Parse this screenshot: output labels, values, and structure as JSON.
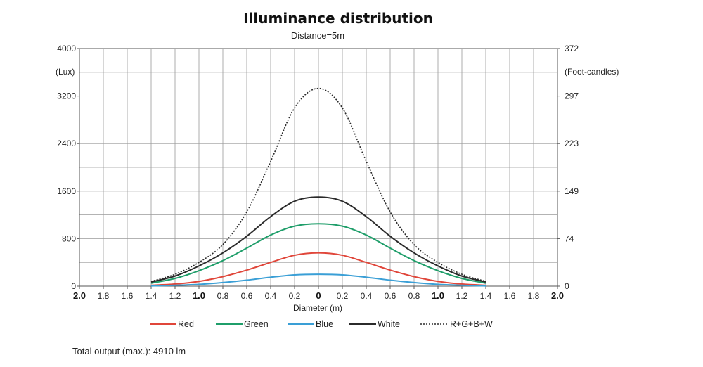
{
  "chart_data": {
    "type": "line",
    "title": "Illuminance distribution",
    "subtitle": "Distance=5m",
    "xlabel": "Diameter (m)",
    "ylabel_left": "(Lux)",
    "ylabel_right": "(Foot-candles)",
    "xlim": [
      -2.0,
      2.0
    ],
    "ylim": [
      0,
      4000
    ],
    "x_ticks": [
      {
        "value": -2.0,
        "label": "2.0",
        "bold": true
      },
      {
        "value": -1.8,
        "label": "1.8",
        "bold": false
      },
      {
        "value": -1.6,
        "label": "1.6",
        "bold": false
      },
      {
        "value": -1.4,
        "label": "1.4",
        "bold": false
      },
      {
        "value": -1.2,
        "label": "1.2",
        "bold": false
      },
      {
        "value": -1.0,
        "label": "1.0",
        "bold": true
      },
      {
        "value": -0.8,
        "label": "0.8",
        "bold": false
      },
      {
        "value": -0.6,
        "label": "0.6",
        "bold": false
      },
      {
        "value": -0.4,
        "label": "0.4",
        "bold": false
      },
      {
        "value": -0.2,
        "label": "0.2",
        "bold": false
      },
      {
        "value": 0.0,
        "label": "0",
        "bold": true
      },
      {
        "value": 0.2,
        "label": "0.2",
        "bold": false
      },
      {
        "value": 0.4,
        "label": "0.4",
        "bold": false
      },
      {
        "value": 0.6,
        "label": "0.6",
        "bold": false
      },
      {
        "value": 0.8,
        "label": "0.8",
        "bold": false
      },
      {
        "value": 1.0,
        "label": "1.0",
        "bold": true
      },
      {
        "value": 1.2,
        "label": "1.2",
        "bold": false
      },
      {
        "value": 1.4,
        "label": "1.4",
        "bold": false
      },
      {
        "value": 1.6,
        "label": "1.6",
        "bold": false
      },
      {
        "value": 1.8,
        "label": "1.8",
        "bold": false
      },
      {
        "value": 2.0,
        "label": "2.0",
        "bold": true
      }
    ],
    "y_ticks_left": [
      {
        "value": 0,
        "label": "0"
      },
      {
        "value": 800,
        "label": "800"
      },
      {
        "value": 1600,
        "label": "1600"
      },
      {
        "value": 2400,
        "label": "2400"
      },
      {
        "value": 3200,
        "label": "3200"
      },
      {
        "value": 4000,
        "label": "4000"
      }
    ],
    "y_ticks_right": [
      {
        "value": 0,
        "label": "0"
      },
      {
        "value": 800,
        "label": "74"
      },
      {
        "value": 1600,
        "label": "149"
      },
      {
        "value": 2400,
        "label": "223"
      },
      {
        "value": 3200,
        "label": "297"
      },
      {
        "value": 4000,
        "label": "372"
      }
    ],
    "grid": true,
    "grid_x_step": 0.2,
    "grid_y_step": 400,
    "legend_position": "bottom",
    "series": [
      {
        "name": "Red",
        "color": "#e0463a",
        "dash": "solid",
        "x": [
          -1.4,
          -1.2,
          -1.0,
          -0.8,
          -0.6,
          -0.4,
          -0.2,
          0.0,
          0.2,
          0.4,
          0.6,
          0.8,
          1.0,
          1.2,
          1.4
        ],
        "y": [
          15,
          35,
          80,
          160,
          270,
          400,
          520,
          560,
          520,
          400,
          270,
          160,
          80,
          35,
          15
        ]
      },
      {
        "name": "Green",
        "color": "#1f9e6a",
        "dash": "solid",
        "x": [
          -1.4,
          -1.2,
          -1.0,
          -0.8,
          -0.6,
          -0.4,
          -0.2,
          0.0,
          0.2,
          0.4,
          0.6,
          0.8,
          1.0,
          1.2,
          1.4
        ],
        "y": [
          50,
          130,
          260,
          430,
          640,
          860,
          1010,
          1050,
          1010,
          860,
          640,
          430,
          260,
          130,
          50
        ]
      },
      {
        "name": "Blue",
        "color": "#3a9fd6",
        "dash": "solid",
        "x": [
          -1.4,
          -1.2,
          -1.0,
          -0.8,
          -0.6,
          -0.4,
          -0.2,
          0.0,
          0.2,
          0.4,
          0.6,
          0.8,
          1.0,
          1.2,
          1.4
        ],
        "y": [
          5,
          15,
          30,
          60,
          100,
          150,
          190,
          200,
          190,
          150,
          100,
          60,
          30,
          15,
          5
        ]
      },
      {
        "name": "White",
        "color": "#2b2b2b",
        "dash": "solid",
        "x": [
          -1.4,
          -1.2,
          -1.0,
          -0.8,
          -0.6,
          -0.4,
          -0.2,
          0.0,
          0.2,
          0.4,
          0.6,
          0.8,
          1.0,
          1.2,
          1.4
        ],
        "y": [
          70,
          170,
          340,
          560,
          840,
          1170,
          1430,
          1500,
          1430,
          1170,
          840,
          560,
          340,
          170,
          70
        ]
      },
      {
        "name": "R+G+B+W",
        "color": "#2b2b2b",
        "dash": "dotted",
        "x": [
          -1.4,
          -1.2,
          -1.0,
          -0.8,
          -0.6,
          -0.4,
          -0.2,
          0.0,
          0.2,
          0.4,
          0.6,
          0.8,
          1.0,
          1.2,
          1.4
        ],
        "y": [
          80,
          200,
          400,
          700,
          1250,
          2100,
          3000,
          3330,
          3000,
          2100,
          1250,
          700,
          400,
          200,
          80
        ]
      }
    ]
  },
  "footer_note": "Total output (max.): 4910 lm"
}
